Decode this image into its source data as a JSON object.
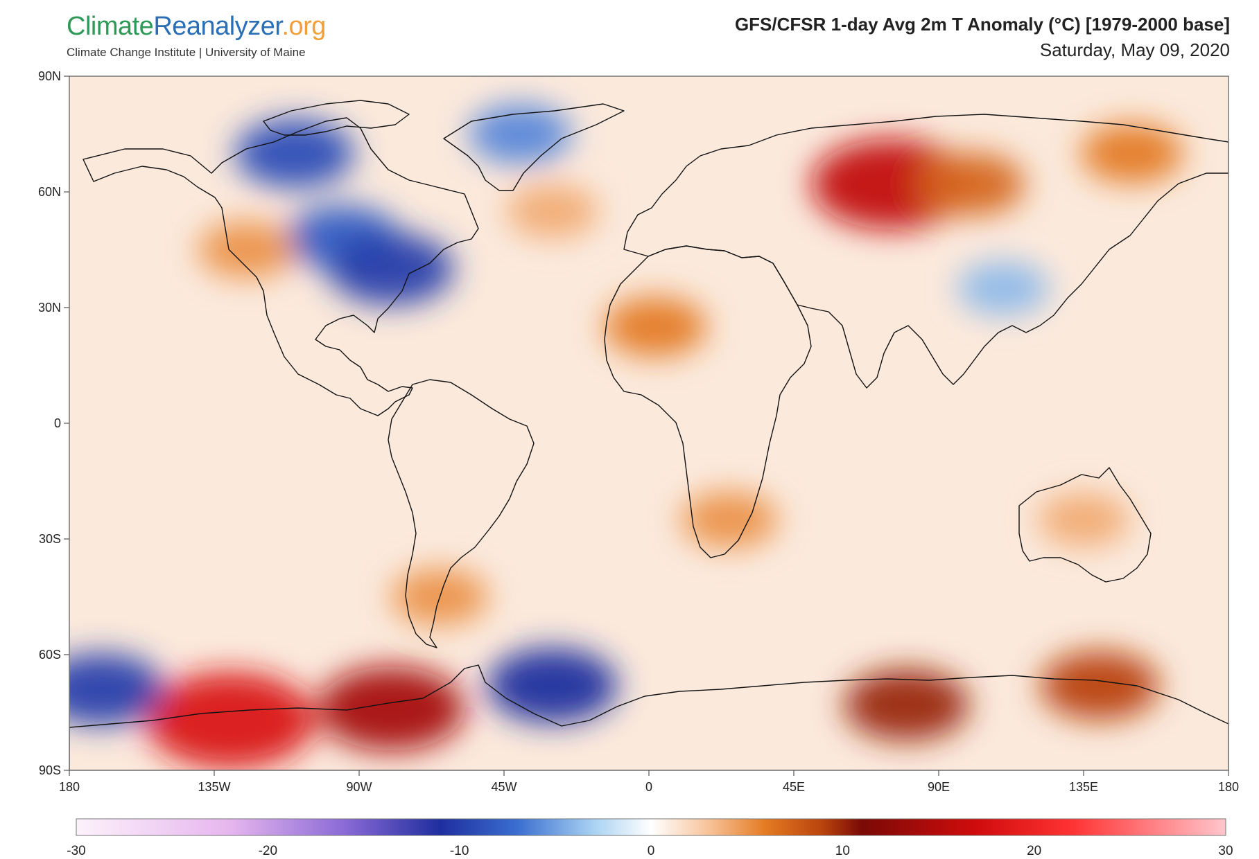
{
  "logo": {
    "part1": "Climate",
    "part2": "Reanalyzer",
    "part3": ".org",
    "subtitle": "Climate Change Institute | University of Maine"
  },
  "title": {
    "main": "GFS/CFSR 1-day Avg 2m T Anomaly (°C) [1979-2000 base]",
    "date": "Saturday, May 09, 2020"
  },
  "map": {
    "lat_labels": [
      {
        "text": "90N",
        "lat": 90
      },
      {
        "text": "60N",
        "lat": 60
      },
      {
        "text": "30N",
        "lat": 30
      },
      {
        "text": "0",
        "lat": 0
      },
      {
        "text": "30S",
        "lat": -30
      },
      {
        "text": "60S",
        "lat": -60
      },
      {
        "text": "90S",
        "lat": -90
      }
    ],
    "lon_labels": [
      {
        "text": "180",
        "lon": -180
      },
      {
        "text": "135W",
        "lon": -135
      },
      {
        "text": "90W",
        "lon": -90
      },
      {
        "text": "45W",
        "lon": -45
      },
      {
        "text": "0",
        "lon": 0
      },
      {
        "text": "45E",
        "lon": 45
      },
      {
        "text": "90E",
        "lon": 90
      },
      {
        "text": "135E",
        "lon": 135
      },
      {
        "text": "180",
        "lon": 180
      }
    ],
    "anomalies": [
      {
        "lon": -95,
        "lat": 48,
        "v": -8
      },
      {
        "lon": -80,
        "lat": 40,
        "v": -10
      },
      {
        "lon": -110,
        "lat": 70,
        "v": -9
      },
      {
        "lon": -40,
        "lat": 75,
        "v": -6
      },
      {
        "lon": 75,
        "lat": 62,
        "v": 16
      },
      {
        "lon": 100,
        "lat": 62,
        "v": 7
      },
      {
        "lon": 150,
        "lat": 70,
        "v": 6
      },
      {
        "lon": 2,
        "lat": 25,
        "v": 6
      },
      {
        "lon": -130,
        "lat": -77,
        "v": 18
      },
      {
        "lon": -80,
        "lat": -74,
        "v": 14
      },
      {
        "lon": -30,
        "lat": -68,
        "v": -11
      },
      {
        "lon": -170,
        "lat": -69,
        "v": -10
      },
      {
        "lon": 80,
        "lat": -73,
        "v": 10
      },
      {
        "lon": 140,
        "lat": -68,
        "v": 9
      },
      {
        "lon": 110,
        "lat": 35,
        "v": -4
      },
      {
        "lon": 135,
        "lat": -25,
        "v": 4
      },
      {
        "lon": 25,
        "lat": -25,
        "v": 5
      },
      {
        "lon": -65,
        "lat": -45,
        "v": 5
      },
      {
        "lon": -125,
        "lat": 45,
        "v": 5
      },
      {
        "lon": -30,
        "lat": 55,
        "v": 4
      }
    ]
  },
  "colorbar": {
    "min": -30,
    "max": 30,
    "ticks": [
      {
        "text": "-30",
        "value": -30
      },
      {
        "text": "-20",
        "value": -20
      },
      {
        "text": "-10",
        "value": -10
      },
      {
        "text": "0",
        "value": 0
      },
      {
        "text": "10",
        "value": 10
      },
      {
        "text": "20",
        "value": 20
      },
      {
        "text": "30",
        "value": 30
      }
    ],
    "stops": [
      {
        "value": -30,
        "color": "#fdf2fb"
      },
      {
        "value": -22,
        "color": "#e6b6ee"
      },
      {
        "value": -16,
        "color": "#8a6ad6"
      },
      {
        "value": -11,
        "color": "#1f2e9e"
      },
      {
        "value": -7,
        "color": "#3a6ed0"
      },
      {
        "value": -3,
        "color": "#a9d2f2"
      },
      {
        "value": 0,
        "color": "#ffffff"
      },
      {
        "value": 3,
        "color": "#f8c39a"
      },
      {
        "value": 6,
        "color": "#e47a22"
      },
      {
        "value": 9,
        "color": "#b8420c"
      },
      {
        "value": 11,
        "color": "#7a0a06"
      },
      {
        "value": 17,
        "color": "#d00c0c"
      },
      {
        "value": 22,
        "color": "#ff3333"
      },
      {
        "value": 30,
        "color": "#ffc6cc"
      }
    ]
  }
}
